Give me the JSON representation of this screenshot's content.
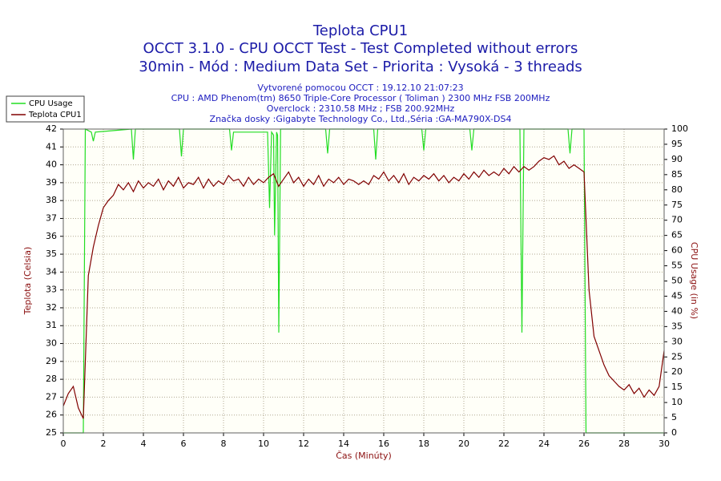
{
  "chart_data": {
    "type": "line",
    "title": "Teplota CPU1",
    "subtitle": "OCCT 3.1.0 - CPU OCCT Test - Test Completed without errors",
    "subtitle2": "30min - Mód : Medium Data Set - Priorita : Vysoká - 3 threads",
    "info": [
      "Vytvorené pomocou OCCT : 19.12.10 21:07:23",
      "CPU : AMD Phenom(tm) 8650 Triple-Core Processor ( Toliman ) 2300 MHz FSB 200MHz",
      "Overclock : 2310.58 MHz ; FSB 200.92MHz",
      "Značka dosky :Gigabyte Technology Co., Ltd.,Séria :GA-MA790X-DS4"
    ],
    "xlabel": "Čas (Minúty)",
    "ylabel": "Teplota (Celsia)",
    "y2label": "CPU Usage (in %)",
    "xlim": [
      0,
      30
    ],
    "xticks": [
      0,
      2,
      4,
      6,
      8,
      10,
      12,
      14,
      16,
      18,
      20,
      22,
      24,
      26,
      28,
      30
    ],
    "ylim": [
      25,
      42
    ],
    "yticks": [
      25,
      26,
      27,
      28,
      29,
      30,
      31,
      32,
      33,
      34,
      35,
      36,
      37,
      38,
      39,
      40,
      41,
      42
    ],
    "y2lim": [
      0,
      100
    ],
    "y2ticks": [
      0,
      5,
      10,
      15,
      20,
      25,
      30,
      35,
      40,
      45,
      50,
      55,
      60,
      65,
      70,
      75,
      80,
      85,
      90,
      95,
      100
    ],
    "grid": true,
    "legend": "top-left",
    "series": [
      {
        "name": "CPU Usage",
        "color": "#22dd22",
        "axis": "y2",
        "x": [
          0,
          1.0,
          1.1,
          1.4,
          1.5,
          1.6,
          3.4,
          3.5,
          3.6,
          5.8,
          5.9,
          6.0,
          8.3,
          8.4,
          8.5,
          10.2,
          10.3,
          10.4,
          10.5,
          10.55,
          10.65,
          10.7,
          10.76,
          10.85,
          13.1,
          13.2,
          13.3,
          15.5,
          15.6,
          15.7,
          17.9,
          18.0,
          18.1,
          20.3,
          20.4,
          20.5,
          22.8,
          22.85,
          22.9,
          23.0,
          25.2,
          25.3,
          25.4,
          26.0,
          26.1,
          30
        ],
        "values": [
          0,
          0,
          100,
          99,
          96,
          99,
          100,
          90,
          100,
          100,
          91,
          100,
          100,
          93,
          99,
          99,
          74,
          99,
          98,
          65,
          99,
          98,
          33,
          100,
          100,
          92,
          100,
          100,
          90,
          100,
          100,
          93,
          100,
          100,
          93,
          100,
          100,
          66,
          33,
          100,
          100,
          92,
          100,
          100,
          0,
          0
        ]
      },
      {
        "name": "Teplota CPU1",
        "color": "#800000",
        "x": [
          0,
          0.25,
          0.5,
          0.75,
          1,
          1.25,
          1.5,
          1.75,
          2,
          2.25,
          2.5,
          2.75,
          3,
          3.25,
          3.5,
          3.75,
          4,
          4.25,
          4.5,
          4.75,
          5,
          5.25,
          5.5,
          5.75,
          6,
          6.25,
          6.5,
          6.75,
          7,
          7.25,
          7.5,
          7.75,
          8,
          8.25,
          8.5,
          8.75,
          9,
          9.25,
          9.5,
          9.75,
          10,
          10.25,
          10.5,
          10.75,
          11,
          11.25,
          11.5,
          11.75,
          12,
          12.25,
          12.5,
          12.75,
          13,
          13.25,
          13.5,
          13.75,
          14,
          14.25,
          14.5,
          14.75,
          15,
          15.25,
          15.5,
          15.75,
          16,
          16.25,
          16.5,
          16.75,
          17,
          17.25,
          17.5,
          17.75,
          18,
          18.25,
          18.5,
          18.75,
          19,
          19.25,
          19.5,
          19.75,
          20,
          20.25,
          20.5,
          20.75,
          21,
          21.25,
          21.5,
          21.75,
          22,
          22.25,
          22.5,
          22.75,
          23,
          23.25,
          23.5,
          23.75,
          24,
          24.25,
          24.5,
          24.75,
          25,
          25.25,
          25.5,
          25.75,
          26,
          26.25,
          26.5,
          26.75,
          27,
          27.25,
          27.5,
          27.75,
          28,
          28.25,
          28.5,
          28.75,
          29,
          29.25,
          29.5,
          29.75,
          30
        ],
        "values": [
          26.5,
          27.2,
          27.6,
          26.4,
          25.8,
          33.8,
          35.4,
          36.6,
          37.6,
          38.0,
          38.3,
          38.9,
          38.6,
          39.0,
          38.5,
          39.1,
          38.7,
          39.0,
          38.8,
          39.2,
          38.6,
          39.1,
          38.8,
          39.3,
          38.7,
          39.0,
          38.9,
          39.3,
          38.7,
          39.2,
          38.8,
          39.1,
          38.9,
          39.4,
          39.1,
          39.2,
          38.8,
          39.3,
          38.9,
          39.2,
          39.0,
          39.3,
          39.5,
          38.8,
          39.2,
          39.6,
          39.0,
          39.3,
          38.8,
          39.2,
          38.9,
          39.4,
          38.8,
          39.2,
          39.0,
          39.3,
          38.9,
          39.2,
          39.1,
          38.9,
          39.1,
          38.9,
          39.4,
          39.2,
          39.6,
          39.1,
          39.4,
          39.0,
          39.5,
          38.9,
          39.3,
          39.1,
          39.4,
          39.2,
          39.5,
          39.1,
          39.4,
          39.0,
          39.3,
          39.1,
          39.5,
          39.2,
          39.6,
          39.3,
          39.7,
          39.4,
          39.6,
          39.4,
          39.8,
          39.5,
          39.9,
          39.6,
          39.9,
          39.7,
          39.9,
          40.2,
          40.4,
          40.3,
          40.5,
          40.0,
          40.2,
          39.8,
          40.0,
          39.8,
          39.6,
          33.0,
          30.4,
          29.6,
          28.8,
          28.2,
          27.9,
          27.6,
          27.4,
          27.7,
          27.2,
          27.5,
          27.0,
          27.4,
          27.1,
          27.6,
          29.6
        ]
      }
    ]
  }
}
